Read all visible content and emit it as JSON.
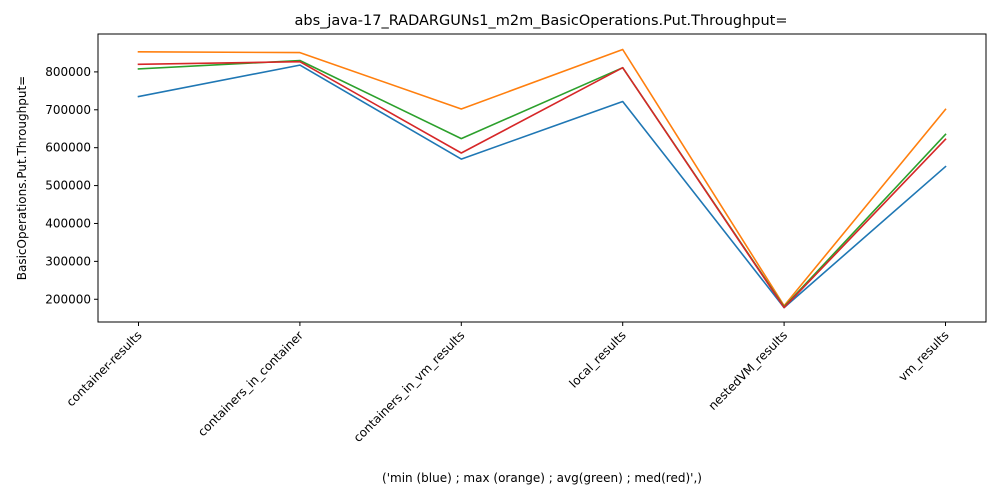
{
  "chart_data": {
    "type": "line",
    "title": "abs_java-17_RADARGUNs1_m2m_BasicOperations.Put.Throughput=",
    "xlabel": "('min (blue) ; max (orange) ; avg(green) ; med(red)',)",
    "ylabel": "BasicOperations.Put.Throughput=",
    "categories": [
      "container-results",
      "containers_in_container",
      "containers_in_vm_results",
      "local_results",
      "nestedVM_results",
      "vm_results"
    ],
    "ylim": [
      140000,
      900000
    ],
    "yticks": [
      200000,
      300000,
      400000,
      500000,
      600000,
      700000,
      800000
    ],
    "ytick_labels": [
      "200000",
      "300000",
      "400000",
      "500000",
      "600000",
      "700000",
      "800000"
    ],
    "grid": false,
    "series": [
      {
        "color": "#1f77b4",
        "values": [
          735000,
          818000,
          570000,
          722000,
          178000,
          550000
        ]
      },
      {
        "color": "#ff7f0e",
        "values": [
          853000,
          851000,
          702000,
          859000,
          183000,
          701000
        ]
      },
      {
        "color": "#2ca02c",
        "values": [
          808000,
          830000,
          624000,
          811000,
          180000,
          635000
        ]
      },
      {
        "color": "#d62728",
        "values": [
          820000,
          827000,
          586000,
          811000,
          178000,
          622000
        ]
      }
    ]
  }
}
